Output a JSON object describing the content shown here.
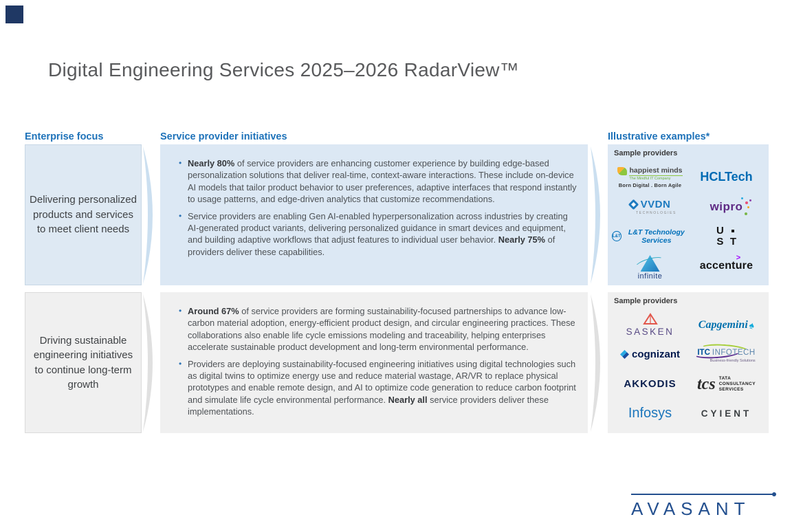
{
  "title": "Digital Engineering Services 2025–2026 RadarView™",
  "columns": {
    "enterprise": {
      "header": "Enterprise focus",
      "box1": "Delivering personalized products and services to meet client needs",
      "box2": "Driving sustainable engineering initiatives to continue long-term growth"
    },
    "initiatives": {
      "header": "Service provider initiatives",
      "panel1": {
        "bullets": [
          {
            "segments": [
              {
                "text": "Nearly 80%",
                "bold": true
              },
              {
                "text": " of service providers are enhancing customer experience by building edge-based personalization solutions that deliver real-time, context-aware interactions. These include on-device AI models that tailor product behavior to user preferences, adaptive interfaces that respond instantly to usage patterns, and edge-driven analytics that customize recommendations.",
                "bold": false
              }
            ]
          },
          {
            "segments": [
              {
                "text": "Service providers are enabling Gen AI-enabled hyperpersonalization across industries by creating AI-generated product variants, delivering personalized guidance in smart devices and equipment, and building adaptive workflows that adjust features to individual user behavior. ",
                "bold": false
              },
              {
                "text": "Nearly 75%",
                "bold": true
              },
              {
                "text": " of providers deliver these capabilities.",
                "bold": false
              }
            ]
          }
        ]
      },
      "panel2": {
        "bullets": [
          {
            "segments": [
              {
                "text": "Around 67%",
                "bold": true
              },
              {
                "text": " of service providers are forming sustainability-focused partnerships to advance low-carbon material adoption, energy-efficient product design, and circular engineering practices. These collaborations also enable life cycle emissions modeling and traceability, helping enterprises accelerate sustainable product development and long-term environmental performance.",
                "bold": false
              }
            ]
          },
          {
            "segments": [
              {
                "text": "Providers are deploying sustainability-focused engineering initiatives using digital technologies such as digital twins to optimize energy use and reduce material wastage, AR/VR to replace physical prototypes and enable remote design, and AI to optimize code generation to reduce carbon footprint and simulate life cycle environmental performance. ",
                "bold": false
              },
              {
                "text": "Nearly all",
                "bold": true
              },
              {
                "text": " service providers deliver these implementations.",
                "bold": false
              }
            ]
          }
        ]
      }
    },
    "examples": {
      "header": "Illustrative examples*",
      "panel1": {
        "label": "Sample providers",
        "logos": {
          "happiest_minds": {
            "name": "happiest minds",
            "tagline": "The Mindful IT Company",
            "sub": "Born Digital . Born Agile"
          },
          "hcltech": {
            "name": "HCLTech"
          },
          "vvdn": {
            "name": "VVDN",
            "sub": "TECHNOLOGIES"
          },
          "wipro": {
            "name": "wipro"
          },
          "lnt": {
            "icon_text": "L&T",
            "name": "L&T Technology Services"
          },
          "ust": {
            "line1": "U",
            "line2_a": "S",
            "line2_b": "T"
          },
          "infinite": {
            "name": "infinite"
          },
          "accenture": {
            "name": "accenture",
            "symbol": ">"
          }
        }
      },
      "panel2": {
        "label": "Sample providers",
        "logos": {
          "sasken": {
            "name": "SASKEN"
          },
          "capgemini": {
            "name": "Capgemini",
            "symbol": "♠"
          },
          "cognizant": {
            "name": "cognizant"
          },
          "itc_infotech": {
            "name1": "ITC",
            "name2": "INFOTECH",
            "tagline": "Business-friendly Solutions"
          },
          "akkodis": {
            "name": "AKKODIS"
          },
          "tcs": {
            "name": "tcs",
            "sub1": "TATA",
            "sub2": "CONSULTANCY",
            "sub3": "SERVICES"
          },
          "infosys": {
            "name": "Infosys"
          },
          "cyient": {
            "name": "CYIENT"
          }
        }
      }
    }
  },
  "footer": {
    "brand": "AVASANT"
  }
}
